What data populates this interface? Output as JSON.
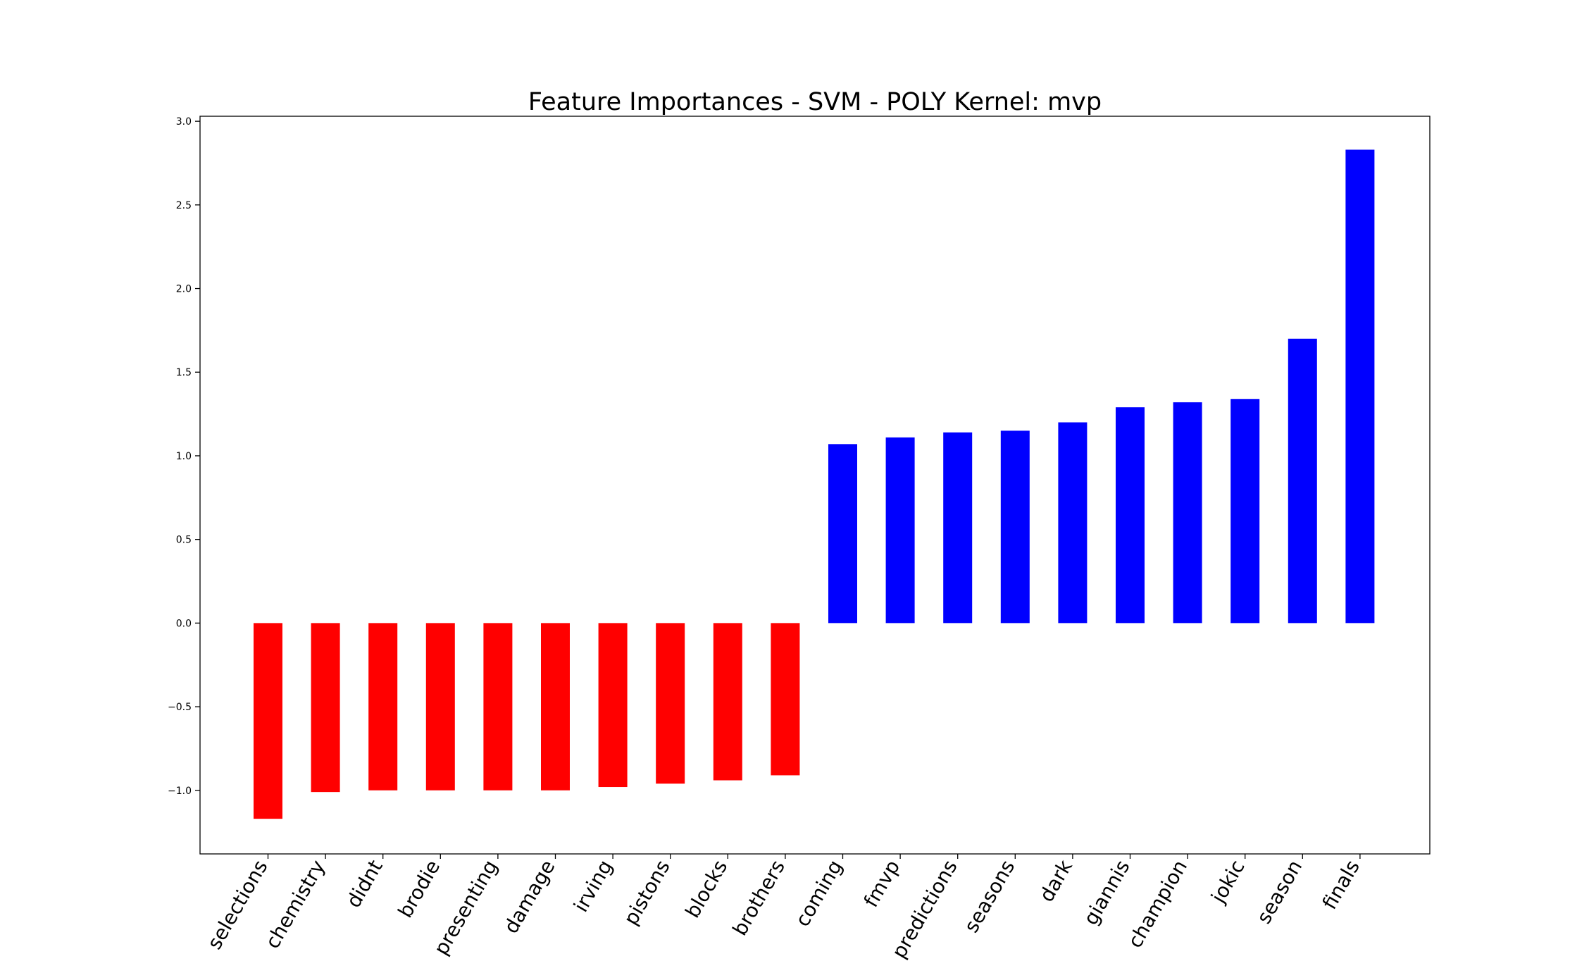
{
  "chart_data": {
    "type": "bar",
    "title": "Feature Importances - SVM - POLY Kernel: mvp",
    "xlabel": "",
    "ylabel": "",
    "categories": [
      "selections",
      "chemistry",
      "didnt",
      "brodie",
      "presenting",
      "damage",
      "irving",
      "pistons",
      "blocks",
      "brothers",
      "coming",
      "fmvp",
      "predictions",
      "seasons",
      "dark",
      "giannis",
      "champion",
      "jokic",
      "season",
      "finals"
    ],
    "values": [
      -1.17,
      -1.01,
      -1.0,
      -1.0,
      -1.0,
      -1.0,
      -0.98,
      -0.96,
      -0.94,
      -0.91,
      1.07,
      1.11,
      1.14,
      1.15,
      1.2,
      1.29,
      1.32,
      1.34,
      1.7,
      2.83
    ],
    "ylim": [
      -1.38,
      3.03
    ],
    "yticks": [
      -1.0,
      -0.5,
      0.0,
      0.5,
      1.0,
      1.5,
      2.0,
      2.5,
      3.0
    ],
    "ytick_labels": [
      "−1.0",
      "−0.5",
      "0.0",
      "0.5",
      "1.0",
      "1.5",
      "2.0",
      "2.5",
      "3.0"
    ],
    "colors": {
      "negative": "#ff0000",
      "positive": "#0000ff"
    },
    "grid": false,
    "legend": "none"
  }
}
